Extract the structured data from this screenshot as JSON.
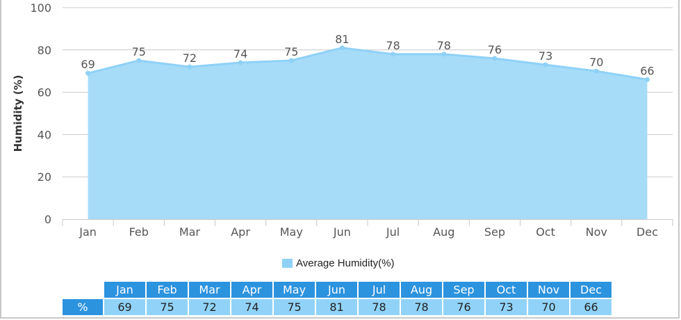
{
  "chart_data": {
    "type": "area",
    "title": "",
    "xlabel": "",
    "ylabel": "Humidity (%)",
    "ylim": [
      0,
      100
    ],
    "yticks": [
      0,
      20,
      40,
      60,
      80,
      100
    ],
    "grid": true,
    "legend_position": "bottom",
    "categories": [
      "Jan",
      "Feb",
      "Mar",
      "Apr",
      "May",
      "Jun",
      "Jul",
      "Aug",
      "Sep",
      "Oct",
      "Nov",
      "Dec"
    ],
    "series": [
      {
        "name": "Average Humidity(%)",
        "values": [
          69,
          75,
          72,
          74,
          75,
          81,
          78,
          78,
          76,
          73,
          70,
          66
        ],
        "color": "#8fd1f7"
      }
    ]
  },
  "axis": {
    "ylabel": "Humidity (%)",
    "yticks": [
      "0",
      "20",
      "40",
      "60",
      "80",
      "100"
    ],
    "months": [
      "Jan",
      "Feb",
      "Mar",
      "Apr",
      "May",
      "Jun",
      "Jul",
      "Aug",
      "Sep",
      "Oct",
      "Nov",
      "Dec"
    ]
  },
  "legend": {
    "label": "Average Humidity(%)"
  },
  "table": {
    "row_header": "%",
    "months": [
      "Jan",
      "Feb",
      "Mar",
      "Apr",
      "May",
      "Jun",
      "Jul",
      "Aug",
      "Sep",
      "Oct",
      "Nov",
      "Dec"
    ],
    "values": [
      "69",
      "75",
      "72",
      "74",
      "75",
      "81",
      "78",
      "78",
      "76",
      "73",
      "70",
      "66"
    ]
  },
  "colors": {
    "area_fill": "#a6dcf8",
    "line": "#8fd1f7",
    "table_header": "#2c93df",
    "table_cell": "#91d3f8"
  }
}
